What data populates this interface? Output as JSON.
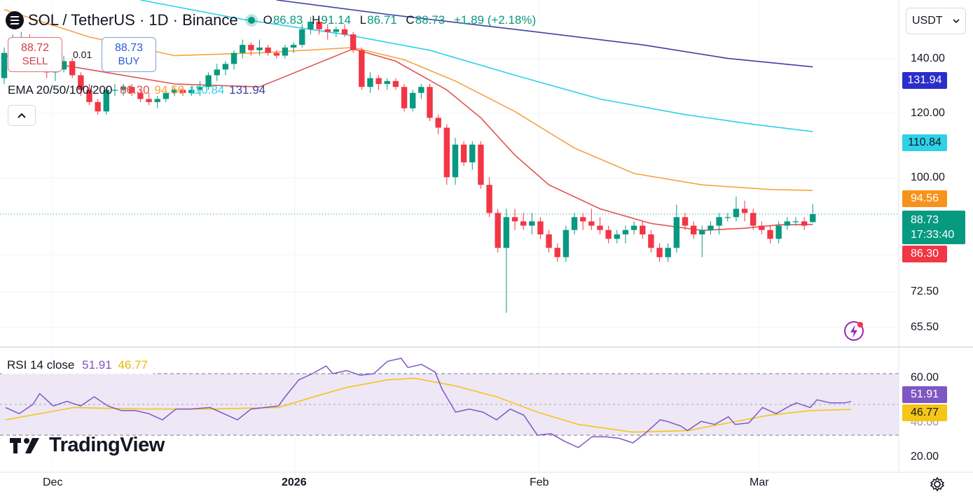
{
  "header": {
    "symbol_title": "SOL / TetherUS · 1D · Binance",
    "ohlc": {
      "o_label": "O",
      "o": "86.83",
      "h_label": "H",
      "h": "91.14",
      "l_label": "L",
      "l": "86.71",
      "c_label": "C",
      "c": "88.73",
      "change": "+1.89 (+2.18%)"
    }
  },
  "trade": {
    "sell_price": "88.72",
    "sell_label": "SELL",
    "buy_price": "88.73",
    "buy_label": "BUY",
    "spread": "0.01"
  },
  "ema_legend": {
    "label": "EMA 20/50/100/200",
    "ema20": "86.30",
    "ema50": "94.56",
    "ema100": "110.84",
    "ema200": "131.94"
  },
  "rsi_legend": {
    "label": "RSI 14 close",
    "rsi": "51.91",
    "ma": "46.77"
  },
  "currency": {
    "selected": "USDT"
  },
  "branding": {
    "name": "TradingView"
  },
  "price_axis": {
    "labels": [
      "140.00",
      "120.00",
      "100.00",
      "72.50",
      "65.50"
    ]
  },
  "rsi_axis": {
    "labels": [
      "60.00",
      "40.00",
      "20.00"
    ]
  },
  "time_axis": {
    "labels": [
      "Dec",
      "2026",
      "Feb",
      "Mar"
    ]
  },
  "tags": {
    "ema200": "131.94",
    "ema100": "110.84",
    "ema50": "94.56",
    "last_price": "88.73",
    "countdown": "17:33:40",
    "ema20": "86.30",
    "rsi": "51.91",
    "rsi_ma": "46.77"
  },
  "colors": {
    "up": "#089981",
    "down": "#f23645",
    "ema20": "#e05252",
    "ema50": "#f7a23f",
    "ema100": "#2ed1e8",
    "ema200": "#3f3fa3",
    "rsi": "#7e57c2",
    "rsi_ma": "#f5c518",
    "rsi_band": "#ede7f6"
  },
  "icons": {
    "logo": "solana-logo-icon",
    "collapse": "chevron-up-icon",
    "dropdown": "chevron-down-icon",
    "flash": "lightning-icon",
    "settings": "gear-icon"
  },
  "chart_data": {
    "type": "candlestick",
    "symbol": "SOL/USDT",
    "timeframe": "1D",
    "price_scale": "log",
    "ylim": [
      62,
      158
    ],
    "candles": [
      [
        128,
        139,
        126,
        137
      ],
      [
        137,
        144,
        134,
        141
      ],
      [
        141,
        145,
        137,
        142
      ],
      [
        142,
        144,
        136,
        138
      ],
      [
        138,
        140,
        131,
        133
      ],
      [
        133,
        135,
        128,
        130
      ],
      [
        130,
        133,
        127,
        131
      ],
      [
        131,
        136,
        130,
        134
      ],
      [
        134,
        135,
        128,
        129
      ],
      [
        129,
        130,
        122,
        124
      ],
      [
        124,
        126,
        119,
        120
      ],
      [
        120,
        121,
        116,
        117
      ],
      [
        117,
        125,
        116,
        124
      ],
      [
        124,
        126,
        122,
        124
      ],
      [
        124,
        126,
        122,
        125
      ],
      [
        125,
        126,
        122,
        123
      ],
      [
        123,
        124,
        120,
        121
      ],
      [
        121,
        123,
        119,
        120
      ],
      [
        120,
        122,
        118,
        121
      ],
      [
        121,
        124,
        120,
        123
      ],
      [
        123,
        125,
        122,
        124
      ],
      [
        124,
        125,
        122,
        123
      ],
      [
        123,
        125,
        122,
        124
      ],
      [
        124,
        127,
        122,
        125
      ],
      [
        125,
        130,
        124,
        129
      ],
      [
        129,
        133,
        127,
        131
      ],
      [
        131,
        134,
        129,
        133
      ],
      [
        133,
        138,
        131,
        137
      ],
      [
        137,
        142,
        135,
        140
      ],
      [
        140,
        141,
        136,
        138
      ],
      [
        138,
        142,
        136,
        139
      ],
      [
        139,
        140,
        136,
        137
      ],
      [
        137,
        138,
        135,
        136
      ],
      [
        136,
        140,
        135,
        139
      ],
      [
        139,
        141,
        137,
        140
      ],
      [
        140,
        148,
        139,
        146
      ],
      [
        146,
        151,
        144,
        149
      ],
      [
        149,
        150,
        144,
        146
      ],
      [
        146,
        148,
        142,
        145
      ],
      [
        145,
        147,
        143,
        146
      ],
      [
        146,
        148,
        143,
        144
      ],
      [
        144,
        145,
        137,
        138
      ],
      [
        138,
        139,
        124,
        125
      ],
      [
        125,
        130,
        123,
        128
      ],
      [
        128,
        129,
        124,
        126
      ],
      [
        126,
        128,
        124,
        127
      ],
      [
        127,
        128,
        124,
        125
      ],
      [
        125,
        126,
        117,
        118
      ],
      [
        118,
        124,
        117,
        123
      ],
      [
        123,
        126,
        121,
        125
      ],
      [
        125,
        126,
        114,
        115
      ],
      [
        115,
        116,
        110,
        112
      ],
      [
        112,
        113,
        96,
        98
      ],
      [
        98,
        109,
        96,
        107
      ],
      [
        107,
        108,
        101,
        102
      ],
      [
        102,
        108,
        100,
        107
      ],
      [
        107,
        108,
        95,
        96
      ],
      [
        96,
        98,
        88,
        89
      ],
      [
        89,
        90,
        80,
        81
      ],
      [
        81,
        90,
        68,
        88
      ],
      [
        88,
        90,
        85,
        87
      ],
      [
        87,
        89,
        85,
        86
      ],
      [
        86,
        89,
        84,
        87
      ],
      [
        87,
        88,
        83,
        84
      ],
      [
        84,
        85,
        80,
        81
      ],
      [
        81,
        82,
        78,
        79
      ],
      [
        79,
        86,
        78,
        85
      ],
      [
        85,
        89,
        84,
        88
      ],
      [
        88,
        89,
        85,
        87
      ],
      [
        87,
        90,
        85,
        86
      ],
      [
        86,
        88,
        84,
        85
      ],
      [
        85,
        86,
        82,
        83
      ],
      [
        83,
        85,
        82,
        84
      ],
      [
        84,
        86,
        82,
        85
      ],
      [
        85,
        87,
        84,
        86
      ],
      [
        86,
        87,
        83,
        84
      ],
      [
        84,
        85,
        80,
        81
      ],
      [
        81,
        82,
        78,
        79
      ],
      [
        79,
        82,
        78,
        81
      ],
      [
        81,
        91,
        80,
        88
      ],
      [
        88,
        89,
        85,
        86
      ],
      [
        86,
        87,
        83,
        84
      ],
      [
        84,
        86,
        79,
        85
      ],
      [
        85,
        87,
        84,
        86
      ],
      [
        86,
        89,
        84,
        88
      ],
      [
        88,
        89,
        87,
        88
      ],
      [
        88,
        93,
        87,
        90
      ],
      [
        90,
        92,
        87,
        89
      ],
      [
        89,
        90,
        85,
        86
      ],
      [
        86,
        87,
        84,
        85
      ],
      [
        85,
        86,
        82,
        83
      ],
      [
        83,
        87,
        82,
        86
      ],
      [
        86,
        88,
        85,
        87
      ],
      [
        87,
        88,
        86,
        87
      ],
      [
        87,
        88,
        85,
        86
      ],
      [
        86.83,
        91.14,
        86.71,
        88.73
      ]
    ],
    "ema20": [
      [
        0,
        136
      ],
      [
        10,
        131
      ],
      [
        20,
        126
      ],
      [
        30,
        125
      ],
      [
        41,
        138.5
      ],
      [
        46,
        134
      ],
      [
        52,
        124
      ],
      [
        56,
        115
      ],
      [
        60,
        104
      ],
      [
        64,
        96
      ],
      [
        70,
        90
      ],
      [
        76,
        86.5
      ],
      [
        82,
        84.9
      ],
      [
        87,
        85.4
      ],
      [
        91,
        86.2
      ],
      [
        95,
        86.3
      ]
    ],
    "ema50": [
      [
        0,
        154
      ],
      [
        10,
        143
      ],
      [
        20,
        136
      ],
      [
        30,
        137
      ],
      [
        41,
        139
      ],
      [
        47,
        134.5
      ],
      [
        53,
        127
      ],
      [
        60,
        117
      ],
      [
        67,
        106
      ],
      [
        74,
        99
      ],
      [
        82,
        96
      ],
      [
        90,
        94.8
      ],
      [
        95,
        94.56
      ]
    ],
    "ema100": [
      [
        16,
        158
      ],
      [
        28,
        150
      ],
      [
        40,
        144
      ],
      [
        50,
        138
      ],
      [
        60,
        129
      ],
      [
        70,
        121
      ],
      [
        80,
        116
      ],
      [
        88,
        113
      ],
      [
        95,
        110.84
      ]
    ],
    "ema200": [
      [
        32,
        158
      ],
      [
        45,
        152
      ],
      [
        60,
        146
      ],
      [
        75,
        140
      ],
      [
        85,
        135
      ],
      [
        95,
        131.94
      ]
    ],
    "rsi": [
      [
        0,
        48
      ],
      [
        2,
        44
      ],
      [
        4,
        50
      ],
      [
        5,
        57
      ],
      [
        7,
        49
      ],
      [
        9,
        52
      ],
      [
        11,
        49
      ],
      [
        13,
        55
      ],
      [
        15,
        49
      ],
      [
        17,
        46
      ],
      [
        19,
        46
      ],
      [
        21,
        44
      ],
      [
        23,
        40
      ],
      [
        25,
        47
      ],
      [
        27,
        47
      ],
      [
        30,
        48
      ],
      [
        32,
        44
      ],
      [
        34,
        40
      ],
      [
        36,
        47
      ],
      [
        38,
        48
      ],
      [
        40,
        49
      ],
      [
        41,
        55
      ],
      [
        43,
        66
      ],
      [
        45,
        70
      ],
      [
        47,
        75
      ],
      [
        48,
        70
      ],
      [
        50,
        72
      ],
      [
        52,
        69
      ],
      [
        54,
        70
      ],
      [
        56,
        78
      ],
      [
        58,
        80
      ],
      [
        59,
        74
      ],
      [
        61,
        76
      ],
      [
        63,
        71
      ],
      [
        64,
        60
      ],
      [
        66,
        45
      ],
      [
        68,
        47
      ],
      [
        70,
        45
      ],
      [
        72,
        40
      ],
      [
        74,
        47
      ],
      [
        76,
        43
      ],
      [
        78,
        30
      ],
      [
        80,
        31
      ],
      [
        82,
        26
      ],
      [
        84,
        22
      ],
      [
        86,
        29
      ],
      [
        88,
        29
      ],
      [
        90,
        28
      ],
      [
        92,
        25
      ],
      [
        94,
        32
      ],
      [
        96,
        40
      ],
      [
        97,
        39
      ],
      [
        99,
        36
      ],
      [
        100,
        33
      ],
      [
        102,
        39
      ],
      [
        104,
        37
      ],
      [
        106,
        42
      ],
      [
        107,
        37
      ],
      [
        109,
        38
      ],
      [
        111,
        48
      ],
      [
        113,
        44
      ],
      [
        115,
        49
      ],
      [
        116,
        51
      ],
      [
        118,
        48
      ],
      [
        119,
        53
      ],
      [
        121,
        51
      ],
      [
        123,
        51
      ],
      [
        124,
        51.91
      ]
    ],
    "rsi_ma": [
      [
        0,
        40
      ],
      [
        10,
        48
      ],
      [
        20,
        47
      ],
      [
        30,
        47
      ],
      [
        40,
        48
      ],
      [
        46,
        56
      ],
      [
        50,
        61
      ],
      [
        56,
        66
      ],
      [
        60,
        67
      ],
      [
        66,
        62
      ],
      [
        72,
        55
      ],
      [
        78,
        45
      ],
      [
        84,
        37
      ],
      [
        92,
        32
      ],
      [
        100,
        33
      ],
      [
        106,
        38
      ],
      [
        112,
        43
      ],
      [
        118,
        46
      ],
      [
        124,
        46.77
      ]
    ],
    "rsi_levels": [
      30,
      50,
      70
    ],
    "rsi_ylim": [
      15,
      80
    ]
  }
}
